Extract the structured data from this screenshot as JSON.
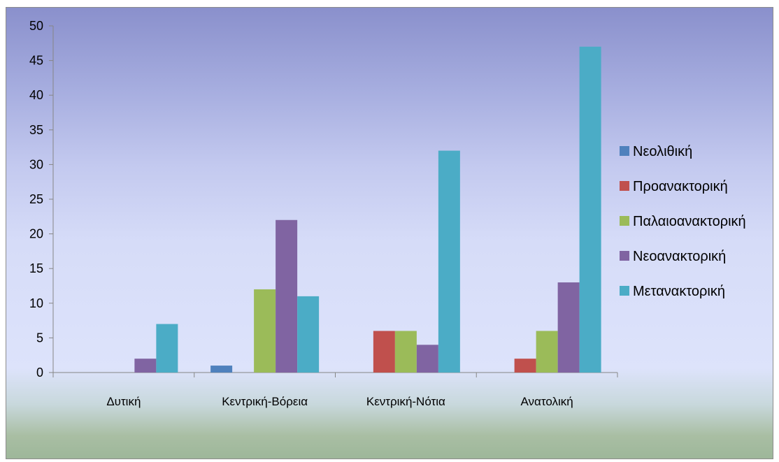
{
  "chart_data": {
    "type": "bar",
    "categories": [
      "Δυτική",
      "Κεντρική-Βόρεια",
      "Κεντρική-Νότια",
      "Ανατολική"
    ],
    "series": [
      {
        "name": "Νεολιθική",
        "color": "#4f81bd",
        "values": [
          0,
          1,
          0,
          0
        ]
      },
      {
        "name": "Προανακτορική",
        "color": "#c0504d",
        "values": [
          0,
          0,
          6,
          2
        ]
      },
      {
        "name": "Παλαιοανακτορική",
        "color": "#9bbb59",
        "values": [
          0,
          12,
          6,
          6
        ]
      },
      {
        "name": "Νεοανακτορική",
        "color": "#8064a2",
        "values": [
          2,
          22,
          4,
          13
        ]
      },
      {
        "name": "Μετανακτορική",
        "color": "#4bacc6",
        "values": [
          7,
          11,
          32,
          47
        ]
      }
    ],
    "yticks": [
      "0",
      "5",
      "10",
      "15",
      "20",
      "25",
      "30",
      "35",
      "40",
      "45",
      "50"
    ],
    "ylim": [
      0,
      50
    ],
    "xlabel": "",
    "ylabel": "",
    "title": "",
    "grid": false,
    "legend_position": "right"
  }
}
